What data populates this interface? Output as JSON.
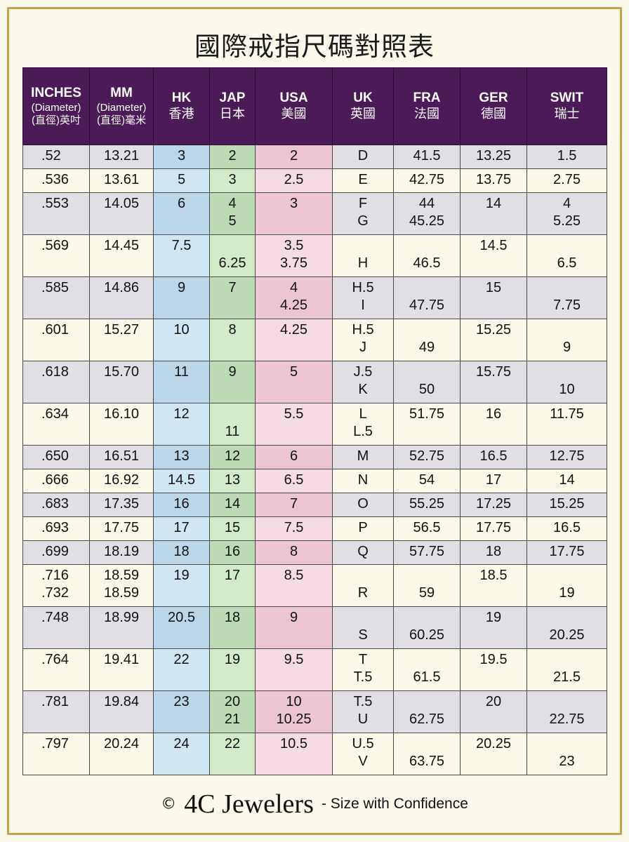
{
  "title": "國際戒指尺碼對照表",
  "headers": [
    {
      "l1": "INCHES",
      "l2": "(Diameter)",
      "l3": "(直徑)英吋"
    },
    {
      "l1": "MM",
      "l2": "(Diameter)",
      "l3": "(直徑)毫米"
    },
    {
      "l1": "HK",
      "l2": "香港"
    },
    {
      "l1": "JAP",
      "l2": "日本"
    },
    {
      "l1": "USA",
      "l2": "美國"
    },
    {
      "l1": "UK",
      "l2": "英國"
    },
    {
      "l1": "FRA",
      "l2": "法國"
    },
    {
      "l1": "GER",
      "l2": "德國"
    },
    {
      "l1": "SWIT",
      "l2": "瑞士"
    }
  ],
  "rows": [
    {
      "h": 1,
      "cells": [
        [
          ".52"
        ],
        [
          "13.21"
        ],
        [
          "3"
        ],
        [
          "2"
        ],
        [
          "2"
        ],
        [
          "D"
        ],
        [
          "41.5"
        ],
        [
          "13.25"
        ],
        [
          "1.5"
        ]
      ]
    },
    {
      "h": 1,
      "cells": [
        [
          ".536"
        ],
        [
          "13.61"
        ],
        [
          "5"
        ],
        [
          "3"
        ],
        [
          "2.5"
        ],
        [
          "E"
        ],
        [
          "42.75"
        ],
        [
          "13.75"
        ],
        [
          "2.75"
        ]
      ]
    },
    {
      "h": 2,
      "cells": [
        [
          ".553"
        ],
        [
          "14.05"
        ],
        [
          "6"
        ],
        [
          "4",
          "5"
        ],
        [
          "3"
        ],
        [
          "F",
          "G"
        ],
        [
          "44",
          "45.25"
        ],
        [
          "14"
        ],
        [
          "4",
          "5.25"
        ]
      ]
    },
    {
      "h": 2,
      "cells": [
        [
          ".569"
        ],
        [
          "14.45"
        ],
        [
          "7.5"
        ],
        [
          "",
          "6.25"
        ],
        [
          "3.5",
          "3.75"
        ],
        [
          "",
          "H"
        ],
        [
          "",
          "46.5"
        ],
        [
          "14.5"
        ],
        [
          "",
          "6.5"
        ]
      ]
    },
    {
      "h": 2,
      "cells": [
        [
          ".585"
        ],
        [
          "14.86"
        ],
        [
          "9"
        ],
        [
          "7"
        ],
        [
          "4",
          "4.25"
        ],
        [
          "H.5",
          "I"
        ],
        [
          "",
          "47.75"
        ],
        [
          "15"
        ],
        [
          "",
          "7.75"
        ]
      ]
    },
    {
      "h": 2,
      "cells": [
        [
          ".601"
        ],
        [
          "15.27"
        ],
        [
          "10"
        ],
        [
          "8"
        ],
        [
          "4.25"
        ],
        [
          "H.5",
          "J"
        ],
        [
          "",
          "49"
        ],
        [
          "15.25"
        ],
        [
          "",
          "9"
        ]
      ]
    },
    {
      "h": 2,
      "cells": [
        [
          ".618"
        ],
        [
          "15.70"
        ],
        [
          "11"
        ],
        [
          "9"
        ],
        [
          "5"
        ],
        [
          "J.5",
          "K"
        ],
        [
          "",
          "50"
        ],
        [
          "15.75"
        ],
        [
          "",
          "10"
        ]
      ]
    },
    {
      "h": 2,
      "cells": [
        [
          ".634"
        ],
        [
          "16.10"
        ],
        [
          "12"
        ],
        [
          "",
          "11"
        ],
        [
          "5.5"
        ],
        [
          "L",
          "L.5"
        ],
        [
          "51.75"
        ],
        [
          "16"
        ],
        [
          "11.75"
        ]
      ]
    },
    {
      "h": 1,
      "cells": [
        [
          ".650"
        ],
        [
          "16.51"
        ],
        [
          "13"
        ],
        [
          "12"
        ],
        [
          "6"
        ],
        [
          "M"
        ],
        [
          "52.75"
        ],
        [
          "16.5"
        ],
        [
          "12.75"
        ]
      ]
    },
    {
      "h": 1,
      "cells": [
        [
          ".666"
        ],
        [
          "16.92"
        ],
        [
          "14.5"
        ],
        [
          "13"
        ],
        [
          "6.5"
        ],
        [
          "N"
        ],
        [
          "54"
        ],
        [
          "17"
        ],
        [
          "14"
        ]
      ]
    },
    {
      "h": 1,
      "cells": [
        [
          ".683"
        ],
        [
          "17.35"
        ],
        [
          "16"
        ],
        [
          "14"
        ],
        [
          "7"
        ],
        [
          "O"
        ],
        [
          "55.25"
        ],
        [
          "17.25"
        ],
        [
          "15.25"
        ]
      ]
    },
    {
      "h": 1,
      "cells": [
        [
          ".693"
        ],
        [
          "17.75"
        ],
        [
          "17"
        ],
        [
          "15"
        ],
        [
          "7.5"
        ],
        [
          "P"
        ],
        [
          "56.5"
        ],
        [
          "17.75"
        ],
        [
          "16.5"
        ]
      ]
    },
    {
      "h": 1,
      "cells": [
        [
          ".699"
        ],
        [
          "18.19"
        ],
        [
          "18"
        ],
        [
          "16"
        ],
        [
          "8"
        ],
        [
          "Q"
        ],
        [
          "57.75"
        ],
        [
          "18"
        ],
        [
          "17.75"
        ]
      ]
    },
    {
      "h": 2,
      "cells": [
        [
          ".716",
          ".732"
        ],
        [
          "18.59",
          "18.59"
        ],
        [
          "19"
        ],
        [
          "17"
        ],
        [
          "8.5"
        ],
        [
          "",
          "R"
        ],
        [
          "",
          "59"
        ],
        [
          "18.5"
        ],
        [
          "",
          "19"
        ]
      ]
    },
    {
      "h": 2,
      "cells": [
        [
          ".748"
        ],
        [
          "18.99"
        ],
        [
          "20.5"
        ],
        [
          "18"
        ],
        [
          "9"
        ],
        [
          "",
          "S"
        ],
        [
          "",
          "60.25"
        ],
        [
          "19"
        ],
        [
          "",
          "20.25"
        ]
      ]
    },
    {
      "h": 2,
      "cells": [
        [
          ".764"
        ],
        [
          "19.41"
        ],
        [
          "22"
        ],
        [
          "19"
        ],
        [
          "9.5"
        ],
        [
          "T",
          "T.5"
        ],
        [
          "",
          "61.5"
        ],
        [
          "19.5"
        ],
        [
          "",
          "21.5"
        ]
      ]
    },
    {
      "h": 2,
      "cells": [
        [
          ".781"
        ],
        [
          "19.84"
        ],
        [
          "23"
        ],
        [
          "20",
          "21"
        ],
        [
          "10",
          "10.25"
        ],
        [
          "T.5",
          "U"
        ],
        [
          "",
          "62.75"
        ],
        [
          "20"
        ],
        [
          "",
          "22.75"
        ]
      ]
    },
    {
      "h": 2,
      "cells": [
        [
          ".797"
        ],
        [
          "20.24"
        ],
        [
          "24"
        ],
        [
          "22"
        ],
        [
          "10.5"
        ],
        [
          "U.5",
          "V"
        ],
        [
          "",
          "63.75"
        ],
        [
          "20.25"
        ],
        [
          "",
          "23"
        ]
      ]
    }
  ],
  "footer": {
    "copyright": "©",
    "brand": "4C Jewelers",
    "tagline": "- Size with Confidence"
  }
}
